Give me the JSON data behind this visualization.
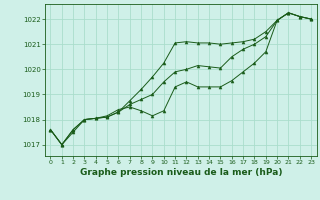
{
  "bg_color": "#cff0e8",
  "grid_color": "#aaddcc",
  "line_color": "#1a5c1a",
  "marker_color": "#1a5c1a",
  "xlabel": "Graphe pression niveau de la mer (hPa)",
  "xlabel_fontsize": 6.5,
  "xlim": [
    -0.5,
    23.5
  ],
  "ylim": [
    1016.55,
    1022.6
  ],
  "yticks": [
    1017,
    1018,
    1019,
    1020,
    1021,
    1022
  ],
  "xticks": [
    0,
    1,
    2,
    3,
    4,
    5,
    6,
    7,
    8,
    9,
    10,
    11,
    12,
    13,
    14,
    15,
    16,
    17,
    18,
    19,
    20,
    21,
    22,
    23
  ],
  "series1": [
    1017.6,
    1017.0,
    1017.5,
    1018.0,
    1018.05,
    1018.1,
    1018.3,
    1018.75,
    1019.2,
    1019.7,
    1020.25,
    1021.05,
    1021.1,
    1021.05,
    1021.05,
    1021.0,
    1021.05,
    1021.1,
    1021.2,
    1021.5,
    1021.95,
    1022.25,
    1022.1,
    1022.0
  ],
  "series2": [
    1017.6,
    1017.0,
    1017.6,
    1018.0,
    1018.05,
    1018.15,
    1018.4,
    1018.5,
    1018.35,
    1018.15,
    1018.35,
    1019.3,
    1019.5,
    1019.3,
    1019.3,
    1019.3,
    1019.55,
    1019.9,
    1020.25,
    1020.7,
    1021.95,
    1022.25,
    1022.1,
    1022.0
  ],
  "series3": [
    1017.6,
    1017.0,
    1017.6,
    1018.0,
    1018.05,
    1018.1,
    1018.3,
    1018.6,
    1018.8,
    1019.0,
    1019.5,
    1019.9,
    1020.0,
    1020.15,
    1020.1,
    1020.05,
    1020.5,
    1020.8,
    1021.0,
    1021.3,
    1021.95,
    1022.25,
    1022.1,
    1022.0
  ]
}
